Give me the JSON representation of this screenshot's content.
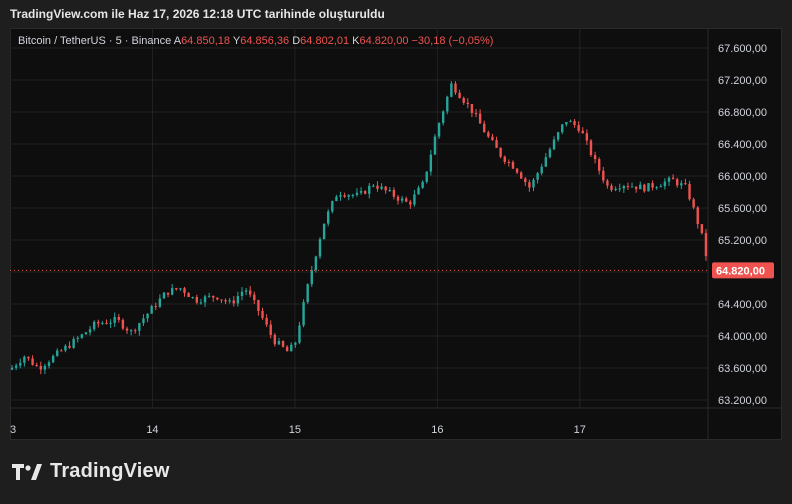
{
  "caption": "TradingView.com ile Haz 17, 2026 12:18 UTC tarihinde oluşturuldu",
  "legend": {
    "symbol": "Bitcoin / TetherUS · 5 · Binance",
    "open_label": "A",
    "open": "64.850,18",
    "high_label": "Y",
    "high": "64.856,36",
    "low_label": "D",
    "low": "64.802,01",
    "close_label": "K",
    "close": "64.820,00",
    "change": "−30,18 (−0,05%)"
  },
  "brand": {
    "name": "TradingView",
    "logo_icon": "tradingview-logo-icon"
  },
  "colors": {
    "up": "#26a69a",
    "down": "#ef5350",
    "price_line": "#ef5350",
    "background": "#0e0e0e",
    "grid": "#222222"
  },
  "chart_data": {
    "type": "candlestick",
    "symbol": "BTCUSDT",
    "interval": "5",
    "x_ticks": [
      "3",
      "14",
      "15",
      "16",
      "17"
    ],
    "y_ticks": [
      "67.600,00",
      "67.200,00",
      "66.800,00",
      "66.400,00",
      "66.000,00",
      "65.600,00",
      "65.200,00",
      "64.800,00",
      "64.400,00",
      "64.000,00",
      "63.600,00",
      "63.200,00"
    ],
    "y_tick_values": [
      67600,
      67200,
      66800,
      66400,
      66000,
      65600,
      65200,
      64800,
      64400,
      64000,
      63600,
      63200
    ],
    "ylim": [
      63100,
      67850
    ],
    "x_range_days": [
      13.0,
      17.9
    ],
    "current_price": 64820,
    "current_price_label": "64.820,00",
    "grid": true,
    "price_path": [
      [
        13.0,
        63580
      ],
      [
        13.1,
        63750
      ],
      [
        13.2,
        63600
      ],
      [
        13.35,
        63800
      ],
      [
        13.5,
        64000
      ],
      [
        13.6,
        64150
      ],
      [
        13.75,
        64200
      ],
      [
        13.85,
        64050
      ],
      [
        14.0,
        64350
      ],
      [
        14.1,
        64550
      ],
      [
        14.2,
        64600
      ],
      [
        14.3,
        64450
      ],
      [
        14.45,
        64500
      ],
      [
        14.55,
        64400
      ],
      [
        14.65,
        64600
      ],
      [
        14.75,
        64300
      ],
      [
        14.85,
        63950
      ],
      [
        14.95,
        63800
      ],
      [
        15.0,
        63900
      ],
      [
        15.1,
        64700
      ],
      [
        15.2,
        65400
      ],
      [
        15.3,
        65800
      ],
      [
        15.45,
        65750
      ],
      [
        15.55,
        65900
      ],
      [
        15.7,
        65750
      ],
      [
        15.8,
        65650
      ],
      [
        15.9,
        65900
      ],
      [
        16.0,
        66600
      ],
      [
        16.1,
        67150
      ],
      [
        16.25,
        66800
      ],
      [
        16.35,
        66500
      ],
      [
        16.45,
        66250
      ],
      [
        16.55,
        66100
      ],
      [
        16.65,
        65850
      ],
      [
        16.75,
        66200
      ],
      [
        16.9,
        66700
      ],
      [
        17.0,
        66600
      ],
      [
        17.1,
        66200
      ],
      [
        17.2,
        65850
      ],
      [
        17.3,
        65900
      ],
      [
        17.45,
        65850
      ],
      [
        17.55,
        65900
      ],
      [
        17.65,
        65950
      ],
      [
        17.75,
        65850
      ],
      [
        17.85,
        65300
      ],
      [
        17.9,
        64900
      ],
      [
        17.95,
        64750
      ],
      [
        18.0,
        64850
      ]
    ]
  }
}
